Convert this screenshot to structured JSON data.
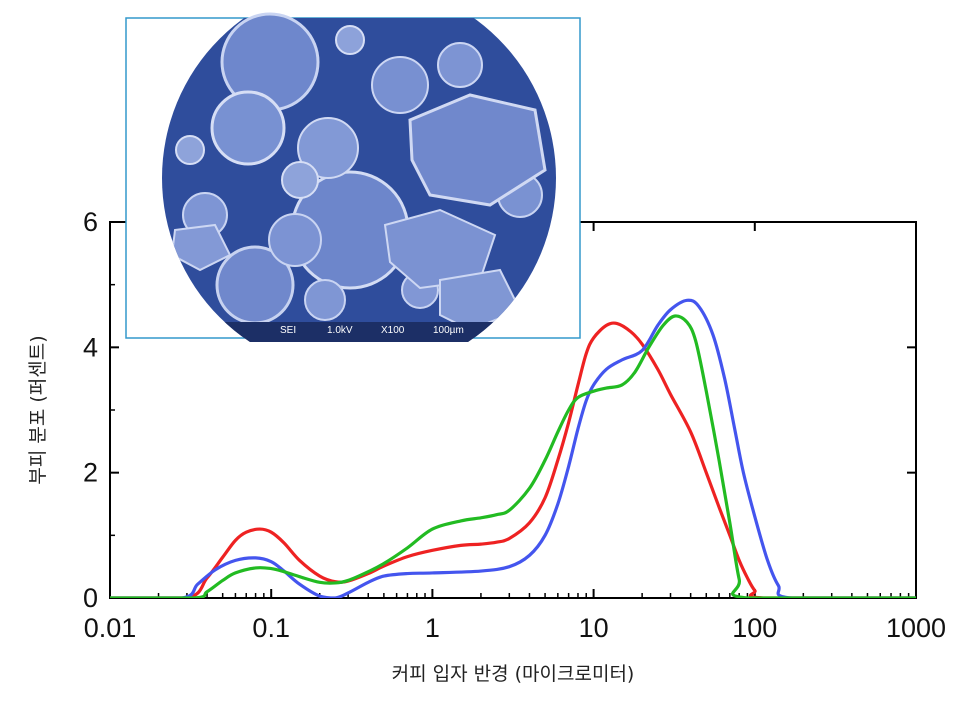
{
  "chart_data": {
    "type": "line",
    "title": "",
    "xlabel": "커피 입자 반경 (마이크로미터)",
    "ylabel": "부피 분포 (퍼센트)",
    "xscale": "log",
    "xlim": [
      0.01,
      1000
    ],
    "ylim": [
      0,
      6
    ],
    "xticks": [
      0.01,
      0.1,
      1,
      10,
      100,
      1000
    ],
    "xtick_labels": [
      "0.01",
      "0.1",
      "1",
      "10",
      "100",
      "1000"
    ],
    "yticks": [
      0,
      2,
      4,
      6
    ],
    "ytick_labels": [
      "0",
      "2",
      "4",
      "6"
    ],
    "grid": false,
    "colors": {
      "red": "#ee2222",
      "blue": "#4455ee",
      "green": "#22bb22"
    },
    "series": [
      {
        "color": "#ee2222",
        "points": [
          [
            0.01,
            0
          ],
          [
            0.03,
            0
          ],
          [
            0.04,
            0.32
          ],
          [
            0.05,
            0.65
          ],
          [
            0.06,
            0.92
          ],
          [
            0.07,
            1.05
          ],
          [
            0.085,
            1.1
          ],
          [
            0.1,
            1.05
          ],
          [
            0.12,
            0.88
          ],
          [
            0.15,
            0.6
          ],
          [
            0.2,
            0.35
          ],
          [
            0.25,
            0.26
          ],
          [
            0.3,
            0.27
          ],
          [
            0.4,
            0.39
          ],
          [
            0.5,
            0.51
          ],
          [
            0.7,
            0.66
          ],
          [
            1,
            0.76
          ],
          [
            1.5,
            0.84
          ],
          [
            2,
            0.86
          ],
          [
            2.5,
            0.89
          ],
          [
            3,
            0.95
          ],
          [
            4,
            1.2
          ],
          [
            5,
            1.6
          ],
          [
            6,
            2.2
          ],
          [
            7,
            2.8
          ],
          [
            8,
            3.4
          ],
          [
            9,
            3.9
          ],
          [
            10,
            4.15
          ],
          [
            12,
            4.35
          ],
          [
            14,
            4.38
          ],
          [
            17,
            4.25
          ],
          [
            20,
            4.05
          ],
          [
            25,
            3.65
          ],
          [
            30,
            3.25
          ],
          [
            40,
            2.65
          ],
          [
            50,
            2.0
          ],
          [
            60,
            1.45
          ],
          [
            70,
            1.0
          ],
          [
            80,
            0.6
          ],
          [
            90,
            0.32
          ],
          [
            100,
            0.12
          ],
          [
            115,
            0.0
          ],
          [
            1000,
            0
          ]
        ]
      },
      {
        "color": "#4455ee",
        "points": [
          [
            0.01,
            0
          ],
          [
            0.028,
            0
          ],
          [
            0.035,
            0.22
          ],
          [
            0.045,
            0.45
          ],
          [
            0.06,
            0.6
          ],
          [
            0.08,
            0.64
          ],
          [
            0.1,
            0.58
          ],
          [
            0.12,
            0.43
          ],
          [
            0.15,
            0.22
          ],
          [
            0.2,
            0.03
          ],
          [
            0.25,
            0.0
          ],
          [
            0.3,
            0.08
          ],
          [
            0.4,
            0.25
          ],
          [
            0.5,
            0.35
          ],
          [
            0.7,
            0.39
          ],
          [
            1,
            0.4
          ],
          [
            2,
            0.43
          ],
          [
            3,
            0.5
          ],
          [
            4,
            0.68
          ],
          [
            5,
            1.0
          ],
          [
            6,
            1.5
          ],
          [
            7,
            2.1
          ],
          [
            8,
            2.7
          ],
          [
            9,
            3.15
          ],
          [
            10,
            3.4
          ],
          [
            12,
            3.65
          ],
          [
            15,
            3.8
          ],
          [
            20,
            3.95
          ],
          [
            25,
            4.35
          ],
          [
            30,
            4.6
          ],
          [
            38,
            4.75
          ],
          [
            45,
            4.65
          ],
          [
            55,
            4.2
          ],
          [
            65,
            3.5
          ],
          [
            75,
            2.7
          ],
          [
            85,
            2.0
          ],
          [
            100,
            1.3
          ],
          [
            120,
            0.6
          ],
          [
            140,
            0.2
          ],
          [
            170,
            0.0
          ],
          [
            1000,
            0
          ]
        ]
      },
      {
        "color": "#22bb22",
        "points": [
          [
            0.01,
            0
          ],
          [
            0.033,
            0
          ],
          [
            0.04,
            0.1
          ],
          [
            0.05,
            0.28
          ],
          [
            0.06,
            0.4
          ],
          [
            0.08,
            0.48
          ],
          [
            0.1,
            0.47
          ],
          [
            0.12,
            0.42
          ],
          [
            0.15,
            0.34
          ],
          [
            0.2,
            0.25
          ],
          [
            0.25,
            0.24
          ],
          [
            0.3,
            0.28
          ],
          [
            0.4,
            0.42
          ],
          [
            0.5,
            0.55
          ],
          [
            0.7,
            0.8
          ],
          [
            1,
            1.1
          ],
          [
            1.5,
            1.23
          ],
          [
            2,
            1.28
          ],
          [
            2.5,
            1.33
          ],
          [
            3,
            1.4
          ],
          [
            4,
            1.75
          ],
          [
            5,
            2.2
          ],
          [
            6,
            2.65
          ],
          [
            7,
            3.0
          ],
          [
            8,
            3.2
          ],
          [
            10,
            3.3
          ],
          [
            12,
            3.35
          ],
          [
            15,
            3.4
          ],
          [
            18,
            3.6
          ],
          [
            22,
            4.0
          ],
          [
            27,
            4.35
          ],
          [
            32,
            4.5
          ],
          [
            38,
            4.4
          ],
          [
            43,
            4.1
          ],
          [
            50,
            3.3
          ],
          [
            60,
            2.2
          ],
          [
            70,
            1.2
          ],
          [
            80,
            0.3
          ],
          [
            90,
            0.0
          ],
          [
            1000,
            0
          ]
        ]
      }
    ]
  },
  "inset": {
    "sem_label": "SEI",
    "sem_voltage": "1.0kV",
    "sem_magnification": "X100",
    "sem_scale": "100µm"
  }
}
